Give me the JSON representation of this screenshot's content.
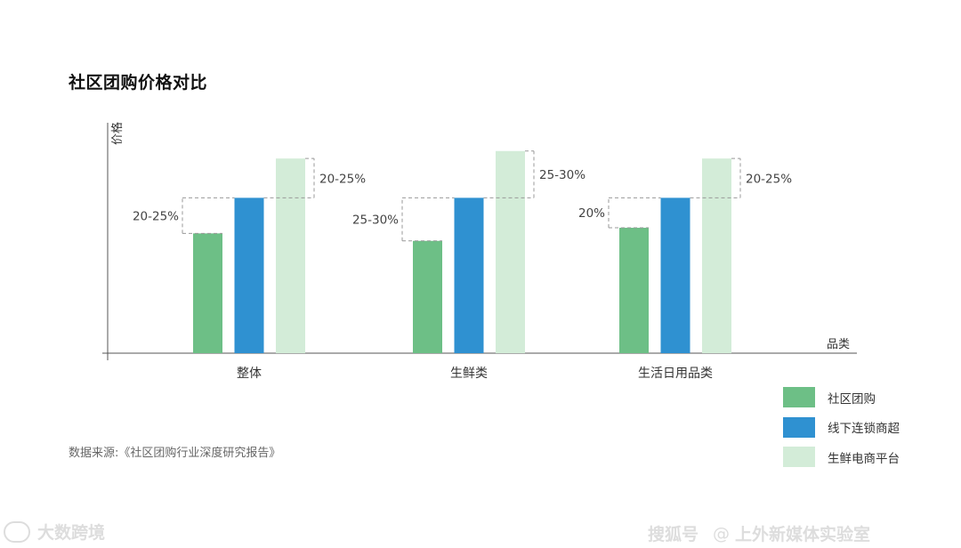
{
  "chart_data": {
    "type": "bar",
    "title": "社区团购价格对比",
    "ylabel": "价格",
    "xlabel": "品类",
    "categories": [
      "整体",
      "生鲜类",
      "生活日用品类"
    ],
    "series": [
      {
        "name": "社区团购",
        "color": "#6dbf86",
        "values": [
          64,
          60,
          67
        ]
      },
      {
        "name": "线下连锁商超",
        "color": "#2f91d1",
        "values": [
          83,
          83,
          83
        ]
      },
      {
        "name": "生鲜电商平台",
        "color": "#d3ecd8",
        "values": [
          104,
          108,
          104
        ]
      }
    ],
    "ylim": [
      0,
      125
    ],
    "annotations": [
      {
        "category": "整体",
        "low_label": "20-25%",
        "high_label": "20-25%"
      },
      {
        "category": "生鲜类",
        "low_label": "25-30%",
        "high_label": "25-30%"
      },
      {
        "category": "生活日用品类",
        "low_label": "20%",
        "high_label": "20-25%"
      }
    ],
    "legend_position": "bottom-right",
    "grid": false
  },
  "source": "数据来源:《社区团购行业深度研究报告》",
  "watermarks": {
    "left": "大数跨境",
    "right_brand": "搜狐号",
    "right_at": "@",
    "right_account": "上外新媒体实验室"
  }
}
